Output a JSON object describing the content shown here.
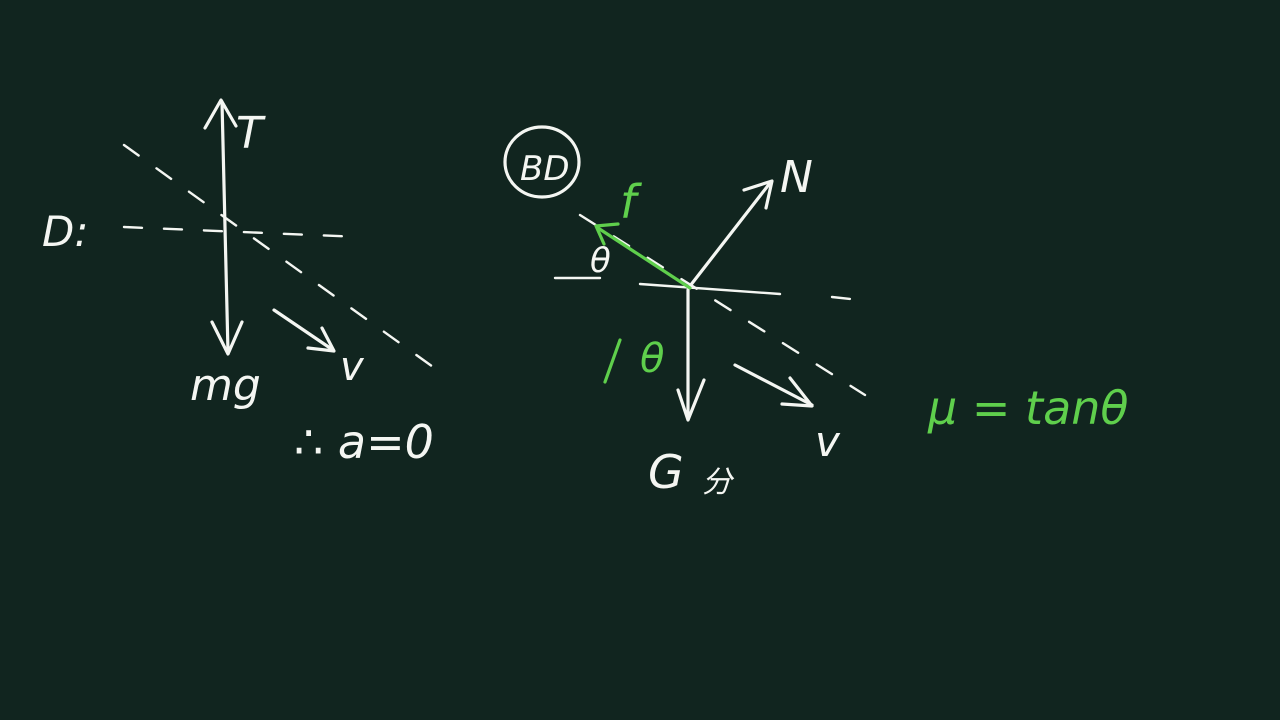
{
  "background_color": "#11251f",
  "chalk_color": "#f4f6f2",
  "accent_color": "#5fcf4c",
  "left_diagram": {
    "label_prefix": "D:",
    "force_up": "T",
    "force_down": "mg",
    "velocity": "v",
    "conclusion": "∴ a=0"
  },
  "right_diagram": {
    "circled_label": "BD",
    "friction": "f",
    "normal": "N",
    "angle_left": "θ",
    "angle_lower": "θ",
    "weight": "G",
    "weight_note": "分",
    "velocity": "v"
  },
  "result": "μ = tanθ"
}
